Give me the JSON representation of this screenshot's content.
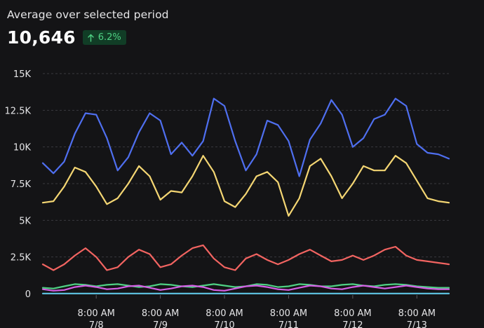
{
  "header": {
    "subtitle": "Average over selected period",
    "value": "10,646",
    "change": "6.2%"
  },
  "chart_data": {
    "type": "line",
    "x_range": [
      "2023-07-07T12:00",
      "2023-07-13T20:00"
    ],
    "ylim": [
      0,
      15000
    ],
    "yticks": [
      {
        "value": 0,
        "label": "0"
      },
      {
        "value": 2500,
        "label": "2.5K"
      },
      {
        "value": 5000,
        "label": "5K"
      },
      {
        "value": 7500,
        "label": "7.5K"
      },
      {
        "value": 10000,
        "label": "10K"
      },
      {
        "value": 12500,
        "label": "12.5K"
      },
      {
        "value": 15000,
        "label": "15K"
      }
    ],
    "xticks": [
      {
        "x": "2023-07-08T08:00",
        "time": "8:00 AM",
        "date": "7/8"
      },
      {
        "x": "2023-07-09T08:00",
        "time": "8:00 AM",
        "date": "7/9"
      },
      {
        "x": "2023-07-10T08:00",
        "time": "8:00 AM",
        "date": "7/10"
      },
      {
        "x": "2023-07-11T08:00",
        "time": "8:00 AM",
        "date": "7/11"
      },
      {
        "x": "2023-07-12T08:00",
        "time": "8:00 AM",
        "date": "7/12"
      },
      {
        "x": "2023-07-13T08:00",
        "time": "8:00 AM",
        "date": "7/13"
      }
    ],
    "grid": true,
    "series": [
      {
        "color": "#4f6ff0",
        "points": [
          [
            "2023-07-07T12:00",
            8900
          ],
          [
            "2023-07-07T16:00",
            8200
          ],
          [
            "2023-07-07T20:00",
            9000
          ],
          [
            "2023-07-08T00:00",
            10900
          ],
          [
            "2023-07-08T04:00",
            12300
          ],
          [
            "2023-07-08T08:00",
            12200
          ],
          [
            "2023-07-08T12:00",
            10600
          ],
          [
            "2023-07-08T16:00",
            8400
          ],
          [
            "2023-07-08T20:00",
            9300
          ],
          [
            "2023-07-09T00:00",
            11000
          ],
          [
            "2023-07-09T04:00",
            12300
          ],
          [
            "2023-07-09T08:00",
            11800
          ],
          [
            "2023-07-09T12:00",
            9500
          ],
          [
            "2023-07-09T16:00",
            10300
          ],
          [
            "2023-07-09T20:00",
            9400
          ],
          [
            "2023-07-10T00:00",
            10400
          ],
          [
            "2023-07-10T04:00",
            13300
          ],
          [
            "2023-07-10T08:00",
            12800
          ],
          [
            "2023-07-10T12:00",
            10400
          ],
          [
            "2023-07-10T16:00",
            8400
          ],
          [
            "2023-07-10T20:00",
            9500
          ],
          [
            "2023-07-11T00:00",
            11800
          ],
          [
            "2023-07-11T04:00",
            11500
          ],
          [
            "2023-07-11T08:00",
            10400
          ],
          [
            "2023-07-11T12:00",
            8000
          ],
          [
            "2023-07-11T16:00",
            10500
          ],
          [
            "2023-07-11T20:00",
            11600
          ],
          [
            "2023-07-12T00:00",
            13200
          ],
          [
            "2023-07-12T04:00",
            12200
          ],
          [
            "2023-07-12T08:00",
            10000
          ],
          [
            "2023-07-12T12:00",
            10600
          ],
          [
            "2023-07-12T16:00",
            11900
          ],
          [
            "2023-07-12T20:00",
            12200
          ],
          [
            "2023-07-13T00:00",
            13300
          ],
          [
            "2023-07-13T04:00",
            12800
          ],
          [
            "2023-07-13T08:00",
            10200
          ],
          [
            "2023-07-13T12:00",
            9600
          ],
          [
            "2023-07-13T16:00",
            9500
          ],
          [
            "2023-07-13T20:00",
            9200
          ]
        ]
      },
      {
        "color": "#f4d673",
        "points": [
          [
            "2023-07-07T12:00",
            6200
          ],
          [
            "2023-07-07T16:00",
            6300
          ],
          [
            "2023-07-07T20:00",
            7300
          ],
          [
            "2023-07-08T00:00",
            8600
          ],
          [
            "2023-07-08T04:00",
            8300
          ],
          [
            "2023-07-08T08:00",
            7300
          ],
          [
            "2023-07-08T12:00",
            6100
          ],
          [
            "2023-07-08T16:00",
            6500
          ],
          [
            "2023-07-08T20:00",
            7500
          ],
          [
            "2023-07-09T00:00",
            8700
          ],
          [
            "2023-07-09T04:00",
            8000
          ],
          [
            "2023-07-09T08:00",
            6400
          ],
          [
            "2023-07-09T12:00",
            7000
          ],
          [
            "2023-07-09T16:00",
            6900
          ],
          [
            "2023-07-09T20:00",
            8000
          ],
          [
            "2023-07-10T00:00",
            9400
          ],
          [
            "2023-07-10T04:00",
            8300
          ],
          [
            "2023-07-10T08:00",
            6300
          ],
          [
            "2023-07-10T12:00",
            5900
          ],
          [
            "2023-07-10T16:00",
            6800
          ],
          [
            "2023-07-10T20:00",
            8000
          ],
          [
            "2023-07-11T00:00",
            8300
          ],
          [
            "2023-07-11T04:00",
            7600
          ],
          [
            "2023-07-11T08:00",
            5300
          ],
          [
            "2023-07-11T12:00",
            6500
          ],
          [
            "2023-07-11T16:00",
            8700
          ],
          [
            "2023-07-11T20:00",
            9200
          ],
          [
            "2023-07-12T00:00",
            8000
          ],
          [
            "2023-07-12T04:00",
            6500
          ],
          [
            "2023-07-12T08:00",
            7500
          ],
          [
            "2023-07-12T12:00",
            8700
          ],
          [
            "2023-07-12T16:00",
            8400
          ],
          [
            "2023-07-12T20:00",
            8400
          ],
          [
            "2023-07-13T00:00",
            9400
          ],
          [
            "2023-07-13T04:00",
            8900
          ],
          [
            "2023-07-13T08:00",
            7700
          ],
          [
            "2023-07-13T12:00",
            6500
          ],
          [
            "2023-07-13T16:00",
            6300
          ],
          [
            "2023-07-13T20:00",
            6200
          ]
        ]
      },
      {
        "color": "#f26461",
        "points": [
          [
            "2023-07-07T12:00",
            2000
          ],
          [
            "2023-07-07T16:00",
            1600
          ],
          [
            "2023-07-07T20:00",
            2000
          ],
          [
            "2023-07-08T00:00",
            2600
          ],
          [
            "2023-07-08T04:00",
            3100
          ],
          [
            "2023-07-08T08:00",
            2500
          ],
          [
            "2023-07-08T12:00",
            1600
          ],
          [
            "2023-07-08T16:00",
            1800
          ],
          [
            "2023-07-08T20:00",
            2500
          ],
          [
            "2023-07-09T00:00",
            3000
          ],
          [
            "2023-07-09T04:00",
            2700
          ],
          [
            "2023-07-09T08:00",
            1800
          ],
          [
            "2023-07-09T12:00",
            2000
          ],
          [
            "2023-07-09T16:00",
            2600
          ],
          [
            "2023-07-09T20:00",
            3100
          ],
          [
            "2023-07-10T00:00",
            3300
          ],
          [
            "2023-07-10T04:00",
            2400
          ],
          [
            "2023-07-10T08:00",
            1800
          ],
          [
            "2023-07-10T12:00",
            1600
          ],
          [
            "2023-07-10T16:00",
            2400
          ],
          [
            "2023-07-10T20:00",
            2700
          ],
          [
            "2023-07-11T00:00",
            2300
          ],
          [
            "2023-07-11T04:00",
            2000
          ],
          [
            "2023-07-11T08:00",
            2300
          ],
          [
            "2023-07-11T12:00",
            2700
          ],
          [
            "2023-07-11T16:00",
            3000
          ],
          [
            "2023-07-11T20:00",
            2600
          ],
          [
            "2023-07-12T00:00",
            2200
          ],
          [
            "2023-07-12T04:00",
            2300
          ],
          [
            "2023-07-12T08:00",
            2600
          ],
          [
            "2023-07-12T12:00",
            2300
          ],
          [
            "2023-07-12T16:00",
            2600
          ],
          [
            "2023-07-12T20:00",
            3000
          ],
          [
            "2023-07-13T00:00",
            3200
          ],
          [
            "2023-07-13T04:00",
            2600
          ],
          [
            "2023-07-13T08:00",
            2300
          ],
          [
            "2023-07-13T12:00",
            2200
          ],
          [
            "2023-07-13T16:00",
            2100
          ],
          [
            "2023-07-13T20:00",
            2000
          ]
        ]
      },
      {
        "color": "#4fd184",
        "points": [
          [
            "2023-07-07T12:00",
            400
          ],
          [
            "2023-07-07T16:00",
            350
          ],
          [
            "2023-07-07T20:00",
            500
          ],
          [
            "2023-07-08T00:00",
            650
          ],
          [
            "2023-07-08T04:00",
            600
          ],
          [
            "2023-07-08T08:00",
            500
          ],
          [
            "2023-07-08T12:00",
            600
          ],
          [
            "2023-07-08T16:00",
            650
          ],
          [
            "2023-07-08T20:00",
            550
          ],
          [
            "2023-07-09T00:00",
            450
          ],
          [
            "2023-07-09T04:00",
            500
          ],
          [
            "2023-07-09T08:00",
            650
          ],
          [
            "2023-07-09T12:00",
            600
          ],
          [
            "2023-07-09T16:00",
            500
          ],
          [
            "2023-07-09T20:00",
            450
          ],
          [
            "2023-07-10T00:00",
            550
          ],
          [
            "2023-07-10T04:00",
            650
          ],
          [
            "2023-07-10T08:00",
            550
          ],
          [
            "2023-07-10T12:00",
            450
          ],
          [
            "2023-07-10T16:00",
            500
          ],
          [
            "2023-07-10T20:00",
            650
          ],
          [
            "2023-07-11T00:00",
            600
          ],
          [
            "2023-07-11T04:00",
            450
          ],
          [
            "2023-07-11T08:00",
            500
          ],
          [
            "2023-07-11T12:00",
            650
          ],
          [
            "2023-07-11T16:00",
            600
          ],
          [
            "2023-07-11T20:00",
            500
          ],
          [
            "2023-07-12T00:00",
            500
          ],
          [
            "2023-07-12T04:00",
            600
          ],
          [
            "2023-07-12T08:00",
            650
          ],
          [
            "2023-07-12T12:00",
            550
          ],
          [
            "2023-07-12T16:00",
            500
          ],
          [
            "2023-07-12T20:00",
            600
          ],
          [
            "2023-07-13T00:00",
            650
          ],
          [
            "2023-07-13T04:00",
            600
          ],
          [
            "2023-07-13T08:00",
            500
          ],
          [
            "2023-07-13T12:00",
            450
          ],
          [
            "2023-07-13T16:00",
            400
          ],
          [
            "2023-07-13T20:00",
            400
          ]
        ]
      },
      {
        "color": "#d65fe6",
        "points": [
          [
            "2023-07-07T12:00",
            300
          ],
          [
            "2023-07-07T16:00",
            200
          ],
          [
            "2023-07-07T20:00",
            250
          ],
          [
            "2023-07-08T00:00",
            450
          ],
          [
            "2023-07-08T04:00",
            550
          ],
          [
            "2023-07-08T08:00",
            450
          ],
          [
            "2023-07-08T12:00",
            300
          ],
          [
            "2023-07-08T16:00",
            350
          ],
          [
            "2023-07-08T20:00",
            500
          ],
          [
            "2023-07-09T00:00",
            550
          ],
          [
            "2023-07-09T04:00",
            400
          ],
          [
            "2023-07-09T08:00",
            250
          ],
          [
            "2023-07-09T12:00",
            350
          ],
          [
            "2023-07-09T16:00",
            500
          ],
          [
            "2023-07-09T20:00",
            550
          ],
          [
            "2023-07-10T00:00",
            450
          ],
          [
            "2023-07-10T04:00",
            250
          ],
          [
            "2023-07-10T08:00",
            200
          ],
          [
            "2023-07-10T12:00",
            350
          ],
          [
            "2023-07-10T16:00",
            500
          ],
          [
            "2023-07-10T20:00",
            550
          ],
          [
            "2023-07-11T00:00",
            450
          ],
          [
            "2023-07-11T04:00",
            300
          ],
          [
            "2023-07-11T08:00",
            250
          ],
          [
            "2023-07-11T12:00",
            400
          ],
          [
            "2023-07-11T16:00",
            550
          ],
          [
            "2023-07-11T20:00",
            500
          ],
          [
            "2023-07-12T00:00",
            350
          ],
          [
            "2023-07-12T04:00",
            300
          ],
          [
            "2023-07-12T08:00",
            450
          ],
          [
            "2023-07-12T12:00",
            550
          ],
          [
            "2023-07-12T16:00",
            450
          ],
          [
            "2023-07-12T20:00",
            350
          ],
          [
            "2023-07-13T00:00",
            450
          ],
          [
            "2023-07-13T04:00",
            550
          ],
          [
            "2023-07-13T08:00",
            450
          ],
          [
            "2023-07-13T12:00",
            350
          ],
          [
            "2023-07-13T16:00",
            300
          ],
          [
            "2023-07-13T20:00",
            300
          ]
        ]
      },
      {
        "color": "#5fc7e6",
        "points": [
          [
            "2023-07-07T12:00",
            10
          ],
          [
            "2023-07-13T20:00",
            10
          ]
        ]
      }
    ]
  }
}
